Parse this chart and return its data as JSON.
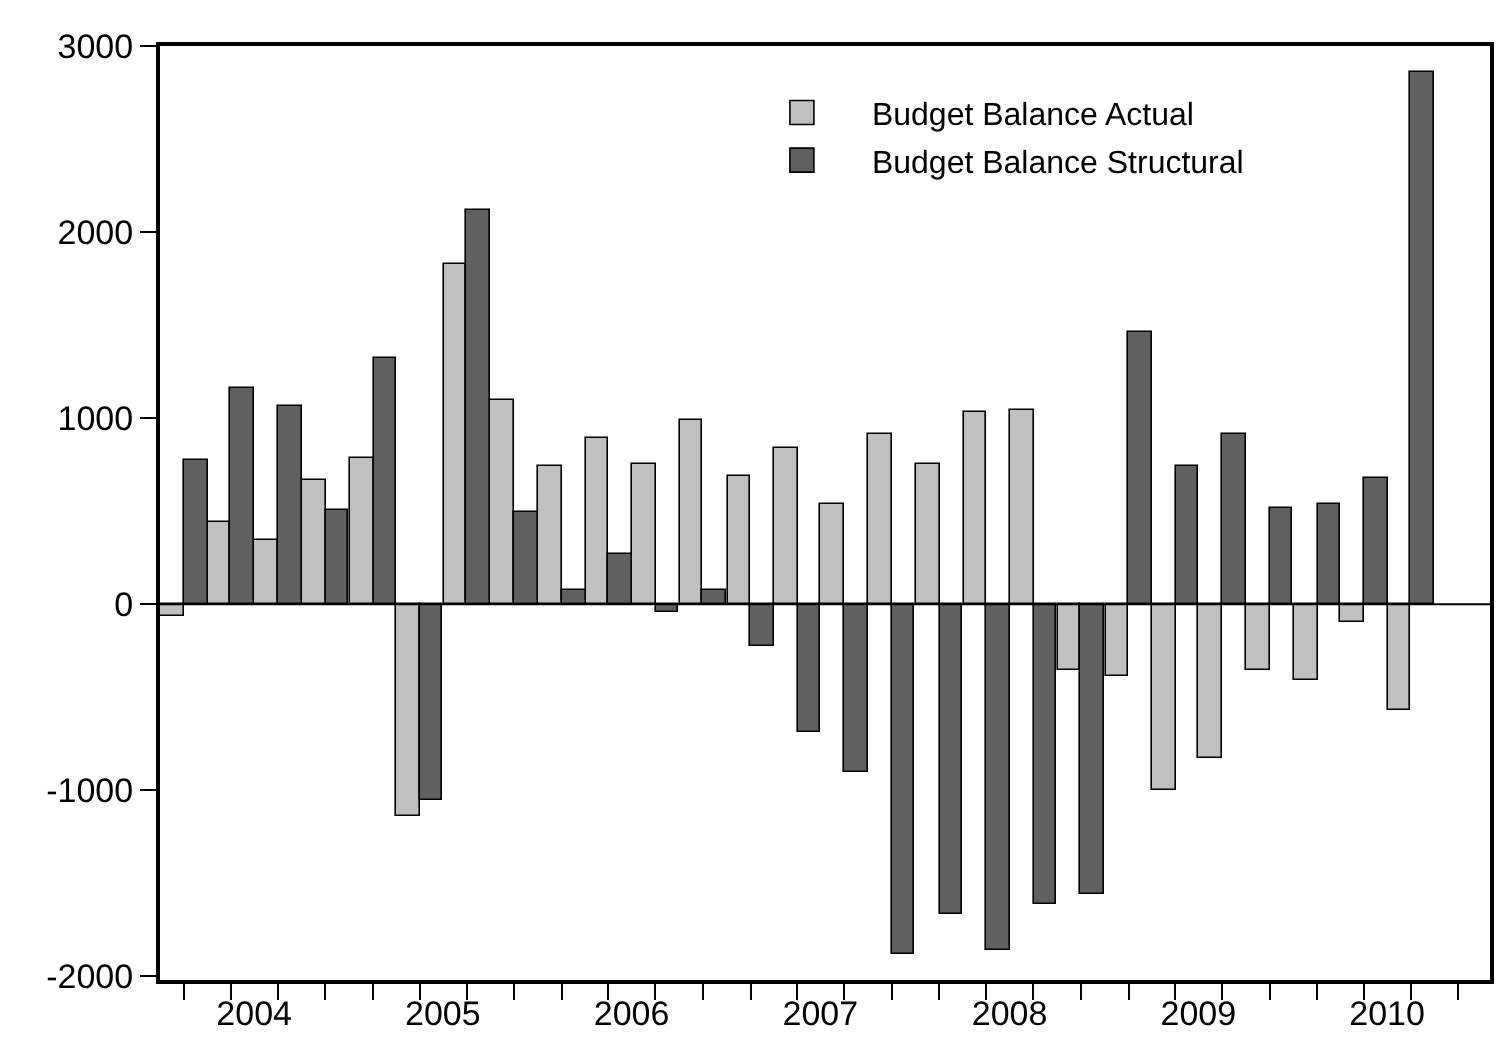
{
  "chart_data": {
    "type": "bar",
    "x": [
      "2004-01",
      "2004-04",
      "2004-07",
      "2004-10",
      "2005-01",
      "2005-04",
      "2005-07",
      "2005-10",
      "2006-01",
      "2006-04",
      "2006-07",
      "2006-10",
      "2007-01",
      "2007-04",
      "2007-07",
      "2007-10",
      "2008-01",
      "2008-04",
      "2008-07",
      "2008-10",
      "2009-01",
      "2009-04",
      "2009-07",
      "2009-10",
      "2010-01",
      "2010-04",
      "2010-07"
    ],
    "series": [
      {
        "name": "Budget Balance Actual",
        "color": "#c0c0c0",
        "values": [
          -65,
          440,
          350,
          670,
          785,
          -1140,
          1825,
          1100,
          740,
          890,
          750,
          995,
          690,
          835,
          535,
          910,
          755,
          1030,
          1040,
          -350,
          -385,
          -1000,
          -825,
          -350,
          -405,
          -95,
          -565
        ]
      },
      {
        "name": "Budget Balance Structural",
        "color": "#606060",
        "values": [
          780,
          1165,
          1060,
          510,
          1325,
          -1055,
          2115,
          500,
          75,
          275,
          -45,
          75,
          -230,
          -690,
          -905,
          -1875,
          -1660,
          -1855,
          -1615,
          -1555,
          1465,
          740,
          910,
          515,
          535,
          675,
          2860
        ]
      }
    ],
    "xlim": [
      "2003-11-16",
      "2010-12-01"
    ],
    "xticks": [
      {
        "value": "2004-01",
        "label": null
      },
      {
        "value": "2004-04",
        "label": null
      },
      {
        "value": "2004-07",
        "label": null
      },
      {
        "value": "2004-10",
        "label": null
      },
      {
        "value": "2005-01",
        "label": null
      },
      {
        "value": "2005-04",
        "label": null
      },
      {
        "value": "2005-07",
        "label": null
      },
      {
        "value": "2005-10",
        "label": null
      },
      {
        "value": "2006-01",
        "label": null
      },
      {
        "value": "2006-04",
        "label": null
      },
      {
        "value": "2006-07",
        "label": null
      },
      {
        "value": "2006-10",
        "label": null
      },
      {
        "value": "2007-01",
        "label": null
      },
      {
        "value": "2007-04",
        "label": null
      },
      {
        "value": "2007-07",
        "label": null
      },
      {
        "value": "2007-10",
        "label": null
      },
      {
        "value": "2008-01",
        "label": null
      },
      {
        "value": "2008-04",
        "label": null
      },
      {
        "value": "2008-07",
        "label": null
      },
      {
        "value": "2008-10",
        "label": null
      },
      {
        "value": "2009-01",
        "label": null
      },
      {
        "value": "2009-04",
        "label": null
      },
      {
        "value": "2009-07",
        "label": null
      },
      {
        "value": "2009-10",
        "label": null
      },
      {
        "value": "2010-01",
        "label": null
      },
      {
        "value": "2010-04",
        "label": null
      },
      {
        "value": "2010-07",
        "label": null
      },
      {
        "value": "2010-10",
        "label": null
      },
      {
        "value": "2004-05-16",
        "label": "2004"
      },
      {
        "value": "2005-05-16",
        "label": "2005"
      },
      {
        "value": "2006-05-16",
        "label": "2006"
      },
      {
        "value": "2007-05-16",
        "label": "2007"
      },
      {
        "value": "2008-05-16",
        "label": "2008"
      },
      {
        "value": "2009-05-16",
        "label": "2009"
      },
      {
        "value": "2010-05-16",
        "label": "2010"
      }
    ],
    "ylim": [
      -2020,
      3000
    ],
    "yticks": [
      -2000,
      -1000,
      0,
      1000,
      2000,
      3000
    ],
    "ref_lines": [
      {
        "axis": "y",
        "value": 0
      }
    ],
    "grid": false,
    "legend": "top right"
  }
}
